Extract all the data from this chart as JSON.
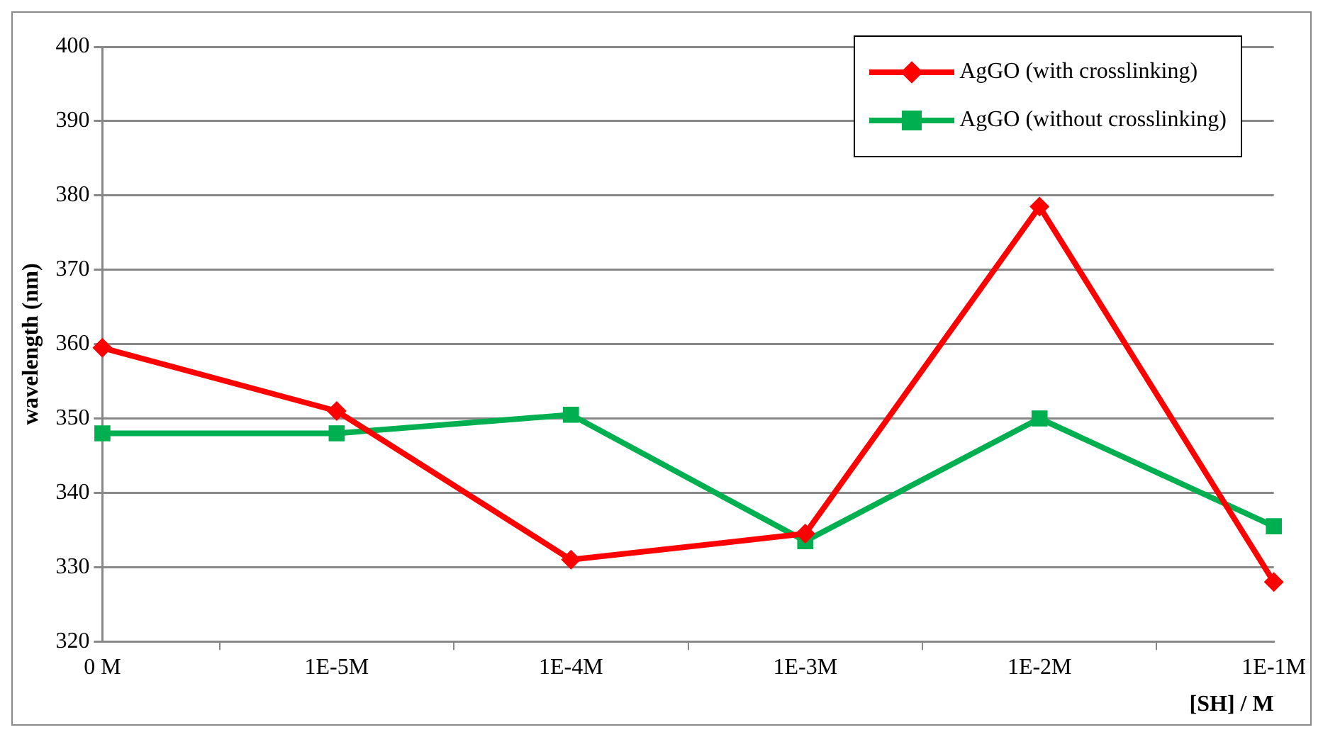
{
  "chart_data": {
    "type": "line",
    "xlabel": "[SH] / M",
    "ylabel": "wavelength (nm)",
    "categories": [
      "0 M",
      "1E-5M",
      "1E-4M",
      "1E-3M",
      "1E-2M",
      "1E-1M"
    ],
    "series": [
      {
        "name": "AgGO (with crosslinking)",
        "color": "#ff0000",
        "marker": "diamond",
        "values": [
          359.5,
          351,
          331,
          334.5,
          378.5,
          328
        ]
      },
      {
        "name": "AgGO (without crosslinking)",
        "color": "#00b050",
        "marker": "square",
        "values": [
          348,
          348,
          350.5,
          333.5,
          350,
          335.5
        ]
      }
    ],
    "ylim": [
      320,
      400
    ],
    "yticks": [
      320,
      330,
      340,
      350,
      360,
      370,
      380,
      390,
      400
    ],
    "grid": "y",
    "legend": "top right",
    "line_style": "solid"
  }
}
